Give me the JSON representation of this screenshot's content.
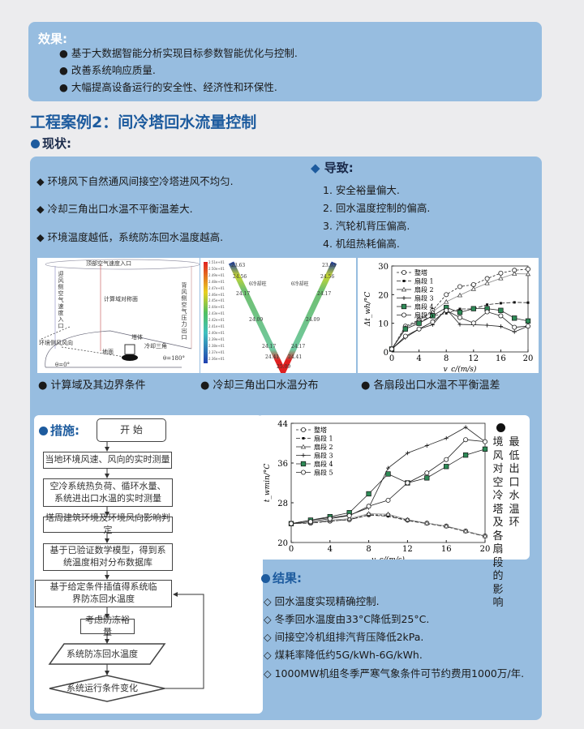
{
  "effects": {
    "heading": "效果:",
    "items": [
      "基于大数据智能分析实现目标参数智能优化与控制.",
      "改善系统响应质量.",
      "大幅提高设备运行的安全性、经济性和环保性."
    ]
  },
  "case_title": "工程案例2：间冷塔回水流量控制",
  "status": {
    "heading": "现状:",
    "items": [
      "环境风下自然通风间接空冷塔进风不均匀.",
      "冷却三角出口水温不平衡温差大.",
      "环境温度越低，系统防冻回水温度越高."
    ]
  },
  "consequences": {
    "heading": "导致:",
    "items": [
      "1. 安全裕量偏大.",
      "2. 回水温度控制的偏高.",
      "3. 汽轮机背压偏高.",
      "4. 机组热耗偏高."
    ]
  },
  "figure1": {
    "caption": "计算域及其边界条件",
    "labels": {
      "top": "顶部空气速度入口",
      "windward": "迎风侧空气速度入口",
      "symmetry": "计算域对称面",
      "leeward": "背风侧空气压力出口",
      "wind": "环境侧风风向",
      "tower": "塔体",
      "ground": "地面",
      "delta": "冷却三角",
      "theta180": "θ=180°",
      "theta0": "θ=0°"
    }
  },
  "figure2": {
    "caption": "冷却三角出口水温分布",
    "colorbar": [
      "2.51e+01",
      "2.50e+01",
      "2.49e+01",
      "2.48e+01",
      "2.47e+01",
      "2.46e+01",
      "2.45e+01",
      "2.44e+01",
      "2.43e+01",
      "2.42e+01",
      "2.41e+01",
      "2.40e+01",
      "2.39e+01",
      "2.38e+01",
      "2.37e+01",
      "2.36e+01"
    ],
    "left_values": [
      "23.63",
      "24.56",
      "24.17",
      "24.09",
      "24.17",
      "24.41"
    ],
    "right_values": [
      "23.63",
      "24.56",
      "24.17",
      "24.09",
      "24.17",
      "24.41"
    ],
    "bottom_value": "25.09",
    "left_col": "θ冷却柱",
    "right_col": "θ冷却柱"
  },
  "chart_data": [
    {
      "type": "line",
      "caption": "各扇段出口水温不平衡温差",
      "xlabel": "v_c/(m/s)",
      "ylabel": "Δt_wh/°C",
      "xlim": [
        0,
        20
      ],
      "ylim": [
        0,
        30
      ],
      "xticks": [
        0,
        4,
        8,
        12,
        16,
        20
      ],
      "yticks": [
        0,
        10,
        20,
        30
      ],
      "legend": "top-left",
      "x": [
        0,
        2,
        4,
        6,
        8,
        10,
        12,
        14,
        16,
        18,
        20
      ],
      "series": [
        {
          "name": "整塔",
          "marker": "circle",
          "dash": "3,2",
          "values": [
            1,
            9,
            11.2,
            14.5,
            20,
            22.8,
            23.5,
            25.6,
            27.5,
            28.5,
            28.9
          ]
        },
        {
          "name": "扇段 1",
          "marker": "dot",
          "dash": "5,2",
          "values": [
            1,
            8.6,
            10.5,
            12.5,
            13.5,
            15,
            15,
            16.5,
            17,
            17.3,
            17.2
          ]
        },
        {
          "name": "扇段 2",
          "marker": "triangle",
          "dash": "",
          "values": [
            1,
            8.5,
            11,
            14,
            17.5,
            19.8,
            22,
            24,
            25.7,
            27.3,
            27.2
          ]
        },
        {
          "name": "扇段 3",
          "marker": "plus",
          "dash": "",
          "values": [
            1,
            5,
            8,
            9.5,
            15,
            9.6,
            9.5,
            9.3,
            8.9,
            7,
            9
          ]
        },
        {
          "name": "扇段 4",
          "marker": "square",
          "dash": "",
          "values": [
            1,
            8,
            10,
            12.6,
            15.5,
            13.8,
            15.1,
            15.1,
            14.5,
            11.8,
            10.8
          ]
        },
        {
          "name": "扇段 5",
          "marker": "circle",
          "dash": "",
          "values": [
            1,
            5.5,
            8,
            10.5,
            14.5,
            12,
            10.1,
            14,
            12.6,
            8.6,
            9
          ]
        }
      ]
    },
    {
      "type": "line",
      "title": "最低出口水温环境风对空冷塔及各扇段的影响",
      "xlabel": "v_c/(m/s)",
      "ylabel": "t_wmin/°C",
      "xlim": [
        0,
        20
      ],
      "ylim": [
        20,
        44
      ],
      "xticks": [
        0,
        4,
        8,
        12,
        16,
        20
      ],
      "yticks": [
        20,
        28,
        36,
        44
      ],
      "legend": "top-left",
      "x": [
        0,
        2,
        4,
        6,
        8,
        10,
        12,
        14,
        16,
        18,
        20
      ],
      "series": [
        {
          "name": "整塔",
          "marker": "circle",
          "dash": "3,2",
          "values": [
            23.8,
            23.9,
            24.3,
            24.6,
            25.6,
            25.5,
            24.5,
            23.9,
            23.3,
            22.3,
            21.3
          ]
        },
        {
          "name": "扇段 1",
          "marker": "dot",
          "dash": "5,2",
          "values": [
            23.8,
            23.9,
            24.3,
            24.6,
            25.5,
            25.3,
            24.4,
            23.8,
            23.2,
            22.2,
            21.2
          ]
        },
        {
          "name": "扇段 2",
          "marker": "triangle",
          "dash": "",
          "values": [
            23.8,
            24,
            24.5,
            24.8,
            25.8,
            25.7,
            24.6,
            23.9,
            23.3,
            22.3,
            21.3
          ]
        },
        {
          "name": "扇段 3",
          "marker": "plus",
          "dash": "",
          "values": [
            23.8,
            24.5,
            25,
            25.5,
            27,
            35,
            38,
            39.5,
            41,
            43.2,
            40.3
          ]
        },
        {
          "name": "扇段 4",
          "marker": "square",
          "dash": "",
          "values": [
            23.8,
            24.5,
            25.2,
            26,
            29.8,
            33.8,
            32,
            33,
            35.3,
            37.6,
            38.8
          ]
        },
        {
          "name": "扇段 5",
          "marker": "circle",
          "dash": "",
          "values": [
            23.8,
            24.2,
            24.8,
            25.4,
            27.3,
            28.5,
            32,
            34,
            36.7,
            40.7,
            40.3
          ]
        }
      ]
    }
  ],
  "measures": {
    "heading": "措施:",
    "start": "开  始",
    "steps": [
      "当地环境风速、风向的实时测量",
      "空冷系统热负荷、循环水量、系统进出口水温的实时测量",
      "塔周建筑环境及环境风向影响判定",
      "基于已验证数学模型，得到系统温度相对分布数据库",
      "基于给定条件插值得系统临界防冻回水温度",
      "考虑防冻裕量",
      "系统防冻回水温度",
      "系统运行条件变化"
    ]
  },
  "results": {
    "heading": "结果:",
    "items": [
      "回水温度实现精确控制.",
      "冬季回水温度由33°C降低到25°C.",
      "间接空冷机组排汽背压降低2kPa.",
      "煤耗率降低约5G/kWh-6G/kWh.",
      "1000MW机组冬季严寒气象条件可节约费用1000万/年."
    ]
  },
  "colors": {
    "panel": "#97bde0",
    "accent": "#1d5b9e",
    "series4_fill": "#2e8b57"
  }
}
